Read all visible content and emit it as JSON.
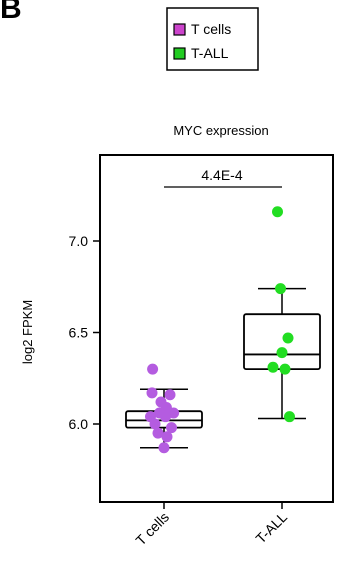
{
  "panel_label": "B",
  "chart_data": {
    "type": "box",
    "title": "MYC expression",
    "xlabel": "",
    "ylabel": "log2 FPKM",
    "ylim": [
      5.6,
      7.6
    ],
    "yticks": [
      6.0,
      6.5,
      7.0
    ],
    "ytick_labels": [
      "6.0",
      "6.5",
      "7.0"
    ],
    "categories": [
      "T cells",
      "T-ALL"
    ],
    "legend": {
      "position": "top",
      "entries": [
        {
          "label": "T cells",
          "color": "#cc44cc"
        },
        {
          "label": "T-ALL",
          "color": "#22cc22"
        }
      ]
    },
    "groups": [
      {
        "name": "T cells",
        "color": "#b45ce0",
        "box": {
          "whisker_low": 5.87,
          "q1": 5.98,
          "median": 6.02,
          "q3": 6.07,
          "whisker_high": 6.19
        },
        "points": [
          {
            "x": -0.38,
            "y": 6.3
          },
          {
            "x": -0.4,
            "y": 6.17
          },
          {
            "x": 0.2,
            "y": 6.16
          },
          {
            "x": -0.1,
            "y": 6.12
          },
          {
            "x": 0.08,
            "y": 6.09
          },
          {
            "x": -0.15,
            "y": 6.06
          },
          {
            "x": 0.32,
            "y": 6.06
          },
          {
            "x": -0.45,
            "y": 6.04
          },
          {
            "x": 0.05,
            "y": 6.04
          },
          {
            "x": -0.3,
            "y": 6.0
          },
          {
            "x": 0.25,
            "y": 5.98
          },
          {
            "x": -0.2,
            "y": 5.95
          },
          {
            "x": 0.1,
            "y": 5.93
          },
          {
            "x": 0.0,
            "y": 5.87
          }
        ]
      },
      {
        "name": "T-ALL",
        "color": "#22dd22",
        "box": {
          "whisker_low": 6.03,
          "q1": 6.3,
          "median": 6.38,
          "q3": 6.6,
          "whisker_high": 6.74
        },
        "points": [
          {
            "x": -0.15,
            "y": 7.16
          },
          {
            "x": -0.05,
            "y": 6.74
          },
          {
            "x": 0.2,
            "y": 6.47
          },
          {
            "x": 0.0,
            "y": 6.39
          },
          {
            "x": -0.3,
            "y": 6.31
          },
          {
            "x": 0.1,
            "y": 6.3
          },
          {
            "x": 0.25,
            "y": 6.04
          }
        ]
      }
    ],
    "annotation": {
      "text": "4.4E-4",
      "between": [
        "T cells",
        "T-ALL"
      ]
    }
  }
}
